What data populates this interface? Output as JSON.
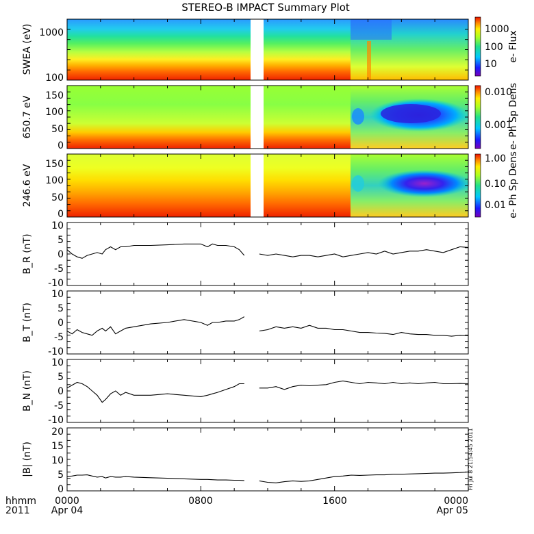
{
  "title": "STEREO-B IMPACT Summary Plot",
  "bottom_labels": {
    "format_label": "hhmm",
    "year_label": "2011",
    "start_date": "Apr 04",
    "end_date": "Apr 05"
  },
  "stamp": "Fri Jul 8 21:54:45 2011",
  "chart_data": [
    {
      "type": "heatmap",
      "ylabel": "SWEA (eV)",
      "yscale": "log",
      "ylim": [
        100,
        1800
      ],
      "yticks": [
        "1000",
        "100"
      ],
      "colorbar_label": "e- Flux",
      "colorbar_ticks": [
        "1000",
        "100",
        "10"
      ],
      "colorbar_scale": "log",
      "data_gap": [
        "1035",
        "1135"
      ],
      "pattern": "Energy spectrum: red at low energy (~100 eV) through orange/yellow/green to cyan/blue near 1000+ eV; disturbed interval after ~1715 with lower flux."
    },
    {
      "type": "heatmap",
      "ylabel": "650.7 eV",
      "ylim": [
        -10,
        180
      ],
      "yticks": [
        "150",
        "100",
        "50",
        "0"
      ],
      "colorbar_label": "e- Ph Sp Dens",
      "colorbar_ticks": [
        "0.010",
        "0.001"
      ],
      "colorbar_scale": "log",
      "data_gap": [
        "1035",
        "1135"
      ],
      "pattern": "Pitch-angle distribution: red near 0, yellow/green above; blue depletion band centered near 90 deg from ~1900 to 2400."
    },
    {
      "type": "heatmap",
      "ylabel": "246.6 eV",
      "ylim": [
        -10,
        180
      ],
      "yticks": [
        "150",
        "100",
        "50",
        "0"
      ],
      "colorbar_label": "e- Ph Sp Dens",
      "colorbar_ticks": [
        "1.00",
        "0.10",
        "0.01"
      ],
      "colorbar_scale": "log",
      "data_gap": [
        "1035",
        "1135"
      ],
      "pattern": "Pitch-angle distribution: red/orange at low angles, yellow/green higher; blue/purple depletion near 90 deg from ~1900 to 2400."
    },
    {
      "type": "line",
      "ylabel": "B_R (nT)",
      "ylim": [
        -11,
        11
      ],
      "yticks": [
        "10",
        "5",
        "0",
        "-5",
        "-10"
      ],
      "x_hours": [
        0,
        0.3,
        0.6,
        0.9,
        1.2,
        1.5,
        1.8,
        2.1,
        2.3,
        2.6,
        2.9,
        3.2,
        3.5,
        4,
        5,
        6,
        7,
        8,
        8.4,
        8.7,
        9,
        9.5,
        10,
        10.3,
        10.6,
        11.5,
        12,
        12.5,
        13,
        13.5,
        14,
        14.5,
        15,
        15.5,
        16,
        16.5,
        17,
        17.5,
        18,
        18.5,
        19,
        19.5,
        20,
        20.5,
        21,
        21.5,
        22,
        22.5,
        23,
        23.5,
        24
      ],
      "y": [
        1.5,
        0,
        -1,
        -1.5,
        -0.5,
        0,
        0.5,
        0,
        1.5,
        2.5,
        1.5,
        2.5,
        2.5,
        3,
        3,
        3.2,
        3.5,
        3.5,
        2.5,
        3.5,
        3,
        3,
        2.5,
        1.5,
        -0.5,
        0,
        -0.5,
        0,
        -0.5,
        -1,
        -0.5,
        -0.5,
        -1,
        -0.5,
        0,
        -1,
        -0.5,
        0,
        0.5,
        0,
        1,
        0,
        0.5,
        1,
        1,
        1.5,
        1,
        0.5,
        1.5,
        2.5,
        2.3
      ]
    },
    {
      "type": "line",
      "ylabel": "B_T (nT)",
      "ylim": [
        -11,
        11
      ],
      "yticks": [
        "10",
        "5",
        "0",
        "-5",
        "-10"
      ],
      "x_hours": [
        0,
        0.3,
        0.6,
        0.9,
        1.2,
        1.5,
        1.8,
        2.1,
        2.3,
        2.6,
        2.9,
        3.2,
        3.5,
        4,
        5,
        6,
        7,
        8,
        8.4,
        8.7,
        9,
        9.5,
        10,
        10.3,
        10.6,
        11.5,
        12,
        12.5,
        13,
        13.5,
        14,
        14.5,
        15,
        15.5,
        16,
        16.5,
        17,
        17.5,
        18,
        18.5,
        19,
        19.5,
        20,
        20.5,
        21,
        21.5,
        22,
        22.5,
        23,
        23.5,
        24
      ],
      "y": [
        -3,
        -4,
        -2.5,
        -3.5,
        -4,
        -4.5,
        -3,
        -2,
        -3,
        -1.5,
        -4,
        -3,
        -2,
        -1.5,
        -0.5,
        0,
        1,
        0,
        -1,
        0,
        0,
        0.5,
        0.5,
        1,
        2,
        -3,
        -2.5,
        -1.5,
        -2,
        -1.5,
        -2,
        -1,
        -2,
        -2,
        -2.5,
        -2.5,
        -3,
        -3.5,
        -3.5,
        -3.7,
        -3.8,
        -4.2,
        -3.5,
        -4,
        -4.2,
        -4.2,
        -4.5,
        -4.5,
        -4.8,
        -4.5,
        -4.6
      ]
    },
    {
      "type": "line",
      "ylabel": "B_N (nT)",
      "ylim": [
        -11,
        11
      ],
      "yticks": [
        "10",
        "5",
        "0",
        "-5",
        "-10"
      ],
      "x_hours": [
        0,
        0.3,
        0.6,
        0.9,
        1.2,
        1.5,
        1.8,
        2.1,
        2.3,
        2.6,
        2.9,
        3.2,
        3.5,
        4,
        5,
        6,
        7,
        8,
        8.4,
        8.7,
        9,
        9.5,
        10,
        10.3,
        10.6,
        11.5,
        12,
        12.5,
        13,
        13.5,
        14,
        14.5,
        15,
        15.5,
        16,
        16.5,
        17,
        17.5,
        18,
        18.5,
        19,
        19.5,
        20,
        20.5,
        21,
        21.5,
        22,
        22.5,
        23,
        23.5,
        24
      ],
      "y": [
        1,
        2,
        3,
        2.5,
        1.5,
        0,
        -1.5,
        -4,
        -3,
        -1,
        0,
        -1.5,
        -0.5,
        -1.5,
        -1.5,
        -1,
        -1.5,
        -2,
        -1.5,
        -1,
        -0.5,
        0.5,
        1.5,
        2.5,
        2.5,
        1,
        1,
        1.5,
        0.5,
        1.5,
        2,
        1.8,
        2,
        2.2,
        3,
        3.5,
        3,
        2.5,
        3,
        2.8,
        2.5,
        3,
        2.5,
        2.8,
        2.5,
        2.8,
        3,
        2.5,
        2.5,
        2.6,
        2.5
      ]
    },
    {
      "type": "line",
      "ylabel": "|B| (nT)",
      "ylim": [
        -1,
        21
      ],
      "yticks": [
        "20",
        "15",
        "10",
        "5",
        "0"
      ],
      "x_hours": [
        0,
        0.3,
        0.6,
        0.9,
        1.2,
        1.5,
        1.8,
        2.1,
        2.3,
        2.6,
        2.9,
        3.2,
        3.5,
        4,
        5,
        6,
        7,
        8,
        8.4,
        8.7,
        9,
        9.5,
        10,
        10.3,
        10.6,
        11.5,
        12,
        12.5,
        13,
        13.5,
        14,
        14.5,
        15,
        15.5,
        16,
        16.5,
        17,
        17.5,
        18,
        18.5,
        19,
        19.5,
        20,
        20.5,
        21,
        21.5,
        22,
        22.5,
        23,
        23.5,
        24
      ],
      "y": [
        4,
        4.2,
        4.5,
        4.5,
        4.6,
        4.2,
        3.8,
        4,
        3.5,
        4,
        3.8,
        3.8,
        4,
        3.8,
        3.6,
        3.4,
        3.2,
        3,
        3,
        2.9,
        2.8,
        2.8,
        2.7,
        2.7,
        2.6,
        2.5,
        2,
        1.8,
        2.2,
        2.5,
        2.3,
        2.5,
        3,
        3.5,
        4,
        4.2,
        4.5,
        4.4,
        4.5,
        4.6,
        4.6,
        4.8,
        4.8,
        4.9,
        5,
        5.1,
        5.2,
        5.2,
        5.3,
        5.4,
        5.6
      ]
    }
  ],
  "x_axis": {
    "range_hours": [
      0,
      24
    ],
    "tick_labels": [
      "0000",
      "0800",
      "1600",
      "0000"
    ],
    "tick_hours": [
      0,
      8,
      16,
      24
    ]
  }
}
